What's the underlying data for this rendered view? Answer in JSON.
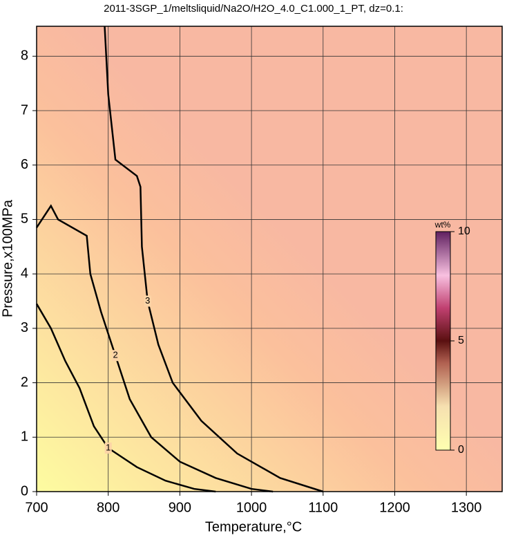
{
  "chart_data": {
    "type": "contour",
    "title": "2011-3SGP_1/meltsliquid/Na2O/H2O_4.0_C1.000_1_PT, dz=0.1:",
    "xlabel": "Temperature,°C",
    "ylabel": "Pressure,x100MPa",
    "xlim": [
      700,
      1350
    ],
    "xticks": [
      700,
      800,
      900,
      1000,
      1100,
      1200,
      1300
    ],
    "ylim": [
      0,
      8.55
    ],
    "yticks": [
      0,
      1,
      2,
      3,
      4,
      5,
      6,
      7,
      8
    ],
    "grid": true,
    "contours": [
      {
        "level": 1,
        "x": [
          700,
          720,
          740,
          760,
          780,
          800,
          840,
          880,
          920,
          950
        ],
        "y": [
          3.45,
          3.0,
          2.4,
          1.9,
          1.2,
          0.8,
          0.45,
          0.2,
          0.05,
          0
        ]
      },
      {
        "level": 2,
        "x": [
          700,
          720,
          730,
          770,
          775,
          790,
          810,
          830,
          860,
          900,
          950,
          1000,
          1030
        ],
        "y": [
          4.85,
          5.25,
          5.0,
          4.7,
          4.0,
          3.3,
          2.5,
          1.7,
          1.0,
          0.55,
          0.25,
          0.05,
          0
        ]
      },
      {
        "level": 3,
        "x": [
          795,
          800,
          810,
          840,
          845,
          847,
          855,
          870,
          890,
          930,
          980,
          1040,
          1100
        ],
        "y": [
          8.55,
          7.3,
          6.1,
          5.8,
          5.6,
          4.5,
          3.5,
          2.7,
          2.0,
          1.3,
          0.7,
          0.25,
          0
        ]
      }
    ],
    "colorbar": {
      "label": "wt%",
      "lim": [
        0,
        10
      ],
      "ticks": [
        0,
        5,
        10
      ]
    }
  }
}
